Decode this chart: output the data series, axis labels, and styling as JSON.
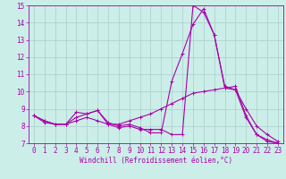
{
  "xlabel": "Windchill (Refroidissement éolien,°C)",
  "bg_color": "#cceee8",
  "line_color": "#aa00aa",
  "grid_color": "#aacccc",
  "xlim": [
    -0.5,
    23.5
  ],
  "ylim": [
    7,
    15
  ],
  "yticks": [
    7,
    8,
    9,
    10,
    11,
    12,
    13,
    14,
    15
  ],
  "xticks": [
    0,
    1,
    2,
    3,
    4,
    5,
    6,
    7,
    8,
    9,
    10,
    11,
    12,
    13,
    14,
    15,
    16,
    17,
    18,
    19,
    20,
    21,
    22,
    23
  ],
  "line1_x": [
    0,
    1,
    2,
    3,
    4,
    5,
    6,
    7,
    8,
    9,
    10,
    11,
    12,
    13,
    14,
    15,
    16,
    17,
    18,
    19,
    20,
    21,
    22,
    23
  ],
  "line1_y": [
    8.6,
    8.3,
    8.1,
    8.1,
    8.8,
    8.7,
    8.9,
    8.1,
    7.9,
    8.0,
    7.8,
    7.8,
    7.8,
    7.5,
    7.5,
    15.0,
    14.6,
    13.3,
    10.2,
    10.3,
    8.6,
    7.5,
    7.1,
    7.0
  ],
  "line2_x": [
    0,
    1,
    2,
    3,
    4,
    5,
    6,
    7,
    8,
    9,
    10,
    11,
    12,
    13,
    14,
    15,
    16,
    17,
    18,
    19,
    20,
    21,
    22,
    23
  ],
  "line2_y": [
    8.6,
    8.3,
    8.1,
    8.1,
    8.3,
    8.5,
    8.3,
    8.1,
    8.1,
    8.3,
    8.5,
    8.7,
    9.0,
    9.3,
    9.6,
    9.9,
    10.0,
    10.1,
    10.2,
    10.1,
    9.0,
    8.0,
    7.5,
    7.1
  ],
  "line3_x": [
    0,
    1,
    2,
    3,
    4,
    5,
    6,
    7,
    8,
    9,
    10,
    11,
    12,
    13,
    14,
    15,
    16,
    17,
    18,
    19,
    20,
    21,
    22,
    23
  ],
  "line3_y": [
    8.6,
    8.2,
    8.1,
    8.1,
    8.5,
    8.7,
    8.9,
    8.2,
    8.0,
    8.1,
    7.9,
    7.6,
    7.6,
    10.6,
    12.2,
    13.9,
    14.8,
    13.3,
    10.3,
    10.1,
    8.5,
    7.5,
    7.2,
    7.0
  ],
  "tick_fontsize": 5.5,
  "xlabel_fontsize": 5.5
}
